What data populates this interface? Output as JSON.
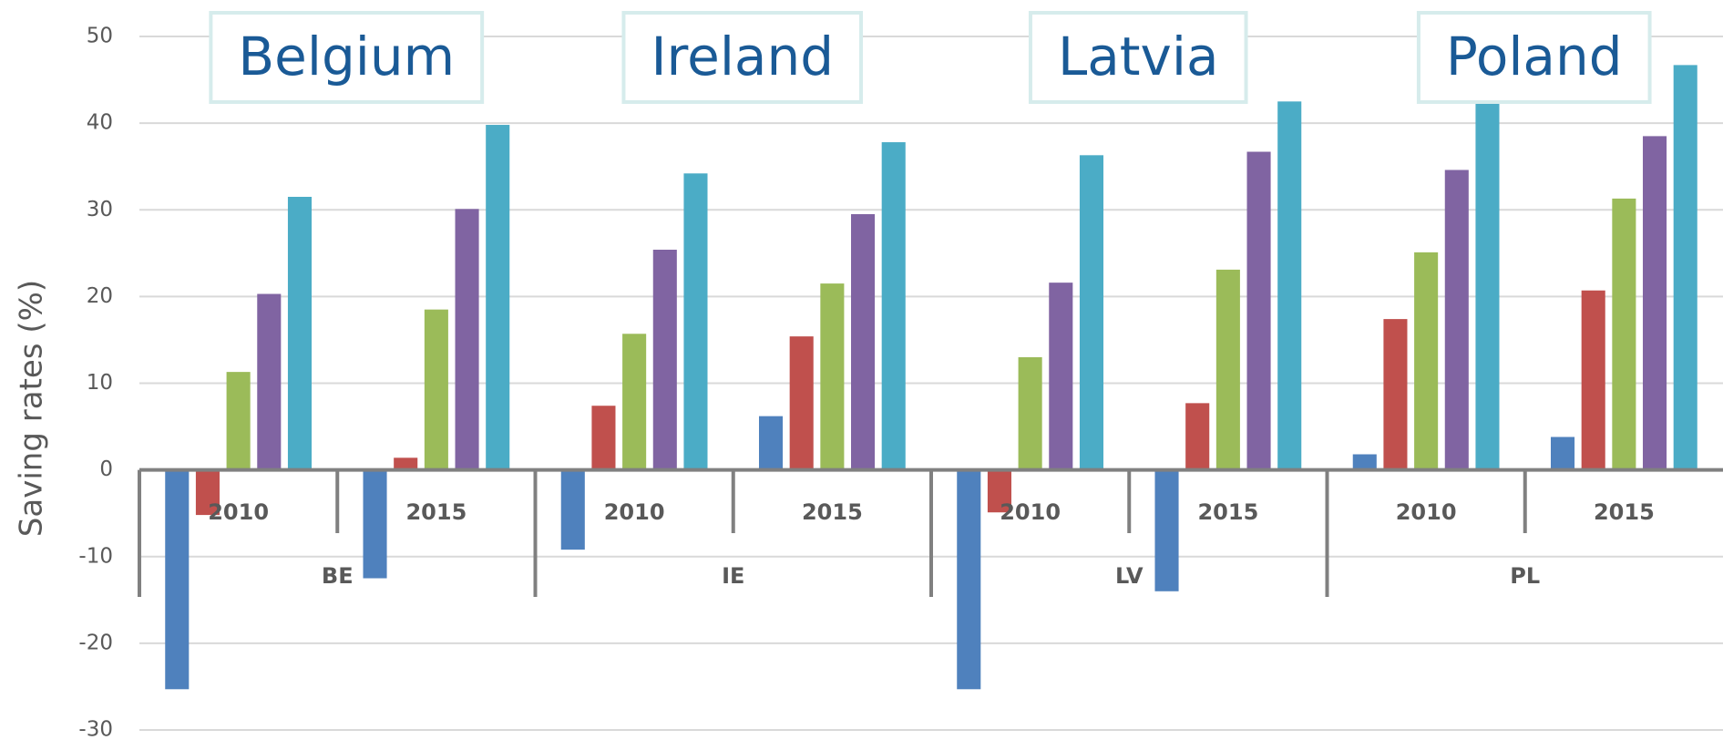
{
  "chart_data": {
    "type": "bar",
    "y_label": "Saving rates (%)",
    "categories": [
      "2010",
      "2015",
      "2010",
      "2015",
      "2010",
      "2015",
      "2010",
      "2015"
    ],
    "groups": [
      "BE",
      "IE",
      "LV",
      "PL"
    ],
    "annotations": [
      "Belgium",
      "Ireland",
      "Latvia",
      "Poland"
    ],
    "series": [
      {
        "color": "#4f81bd",
        "values": [
          -25.3,
          -12.5,
          -9.2,
          6.2,
          -25.3,
          -14.0,
          1.8,
          3.8
        ]
      },
      {
        "color": "#c0504d",
        "values": [
          -5.2,
          1.4,
          7.4,
          15.4,
          -4.9,
          7.7,
          17.4,
          20.7
        ]
      },
      {
        "color": "#9bbb59",
        "values": [
          11.3,
          18.5,
          15.7,
          21.5,
          13.0,
          23.1,
          25.1,
          31.3
        ]
      },
      {
        "color": "#8064a2",
        "values": [
          20.3,
          30.1,
          25.4,
          29.5,
          21.6,
          36.7,
          34.6,
          38.5
        ]
      },
      {
        "color": "#4bacc6",
        "values": [
          31.5,
          39.8,
          34.2,
          37.8,
          36.3,
          42.5,
          42.3,
          46.7
        ]
      }
    ],
    "ylim": [
      -30,
      50
    ],
    "yticks": [
      -30,
      -20,
      -10,
      0,
      10,
      20,
      30,
      40,
      50
    ],
    "grid": true
  }
}
